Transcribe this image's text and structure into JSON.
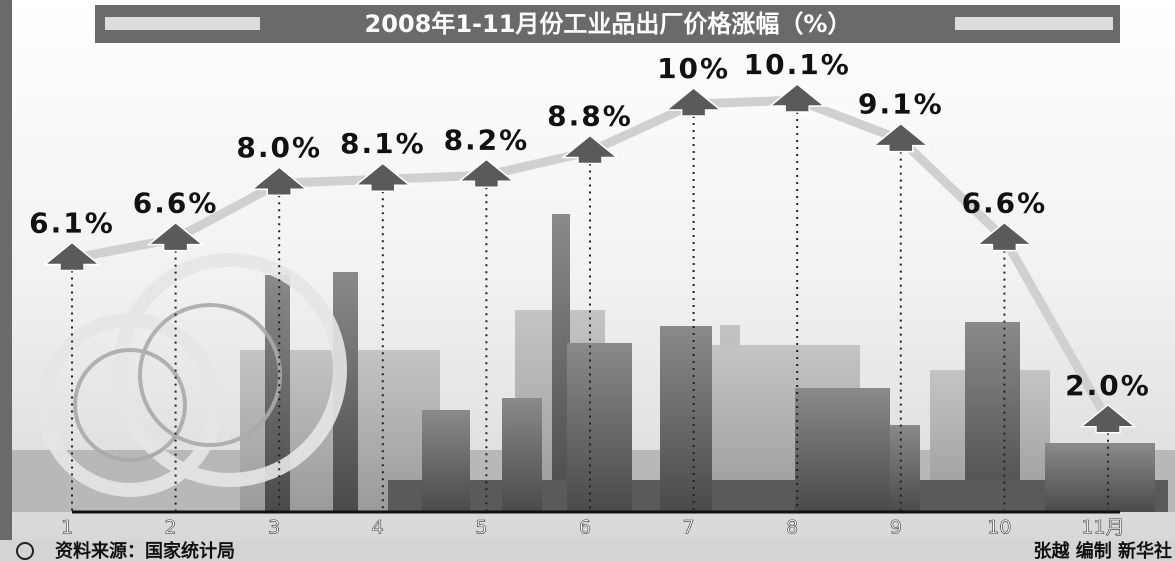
{
  "chart_data": {
    "type": "line",
    "title": "2008年1-11月份工业品出厂价格涨幅（%）",
    "categories": [
      "1",
      "2",
      "3",
      "4",
      "5",
      "6",
      "7",
      "8",
      "9",
      "10",
      "11月"
    ],
    "values": [
      6.1,
      6.6,
      8.0,
      8.1,
      8.2,
      8.8,
      10,
      10.1,
      9.1,
      6.6,
      2.0
    ],
    "value_labels": [
      "6.1%",
      "6.6%",
      "8.0%",
      "8.1%",
      "8.2%",
      "8.8%",
      "10%",
      "10.1%",
      "9.1%",
      "6.6%",
      "2.0%"
    ],
    "color": "#d0d0d0",
    "marker_color": "#5a5a5a",
    "source": "资料来源：国家统计局",
    "credit": "张越 编制 新华社"
  }
}
